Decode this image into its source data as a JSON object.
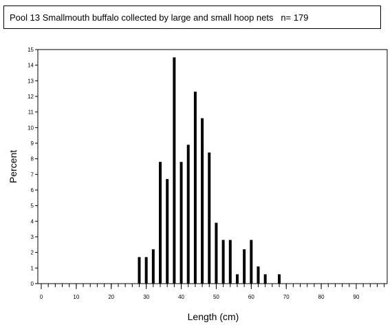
{
  "chart_data": {
    "type": "bar",
    "title": "Pool 13 Smallmouth buffalo collected by large and small hoop nets   n= 179",
    "xlabel": "Length (cm)",
    "ylabel": "Percent",
    "xlim": [
      0,
      98
    ],
    "ylim": [
      0,
      15
    ],
    "x_ticks": [
      0,
      10,
      20,
      30,
      40,
      50,
      60,
      70,
      80,
      90
    ],
    "y_ticks": [
      0,
      1,
      2,
      3,
      4,
      5,
      6,
      7,
      8,
      9,
      10,
      11,
      12,
      13,
      14,
      15
    ],
    "x": [
      28,
      30,
      32,
      34,
      36,
      38,
      40,
      42,
      44,
      46,
      48,
      50,
      52,
      54,
      56,
      58,
      60,
      62,
      64,
      68
    ],
    "values": [
      1.7,
      1.7,
      2.2,
      7.8,
      6.7,
      14.5,
      7.8,
      8.9,
      12.3,
      10.6,
      8.4,
      3.9,
      2.8,
      2.8,
      0.6,
      2.2,
      2.8,
      1.1,
      0.6,
      0.6
    ],
    "grid": false,
    "legend": "none"
  }
}
